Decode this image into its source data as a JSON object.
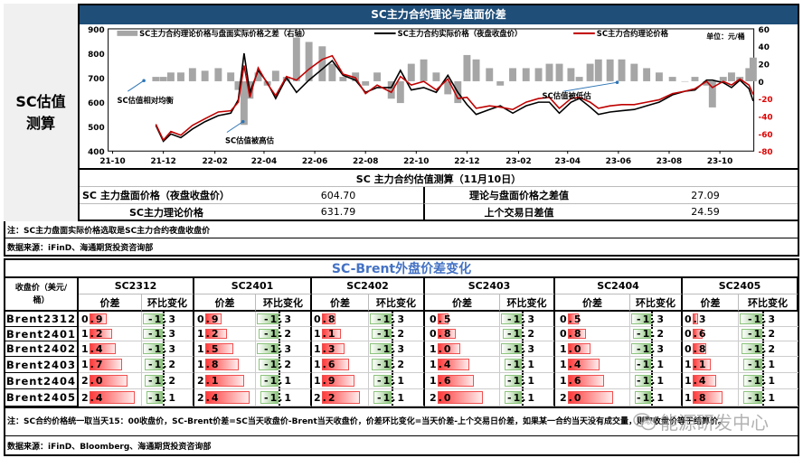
{
  "side_label": "SC估值测算",
  "chart_data": {
    "type": "bar+line",
    "title": "SC主力合约理论与盘面价差",
    "unit": "单位：元/桶",
    "left_axis": {
      "range": [
        400,
        900
      ],
      "ticks": [
        400,
        500,
        600,
        700,
        800,
        900
      ]
    },
    "right_axis": {
      "range": [
        -80,
        60
      ],
      "ticks": [
        -80,
        -60,
        -40,
        -20,
        0,
        20,
        40,
        60
      ]
    },
    "x_ticks": [
      "21-10",
      "21-12",
      "22-02",
      "22-04",
      "22-06",
      "22-08",
      "22-10",
      "22-12",
      "23-02",
      "23-04",
      "23-06",
      "23-08",
      "23-10"
    ],
    "x_tick_dates": [
      "2021-10-01",
      "2021-12-01",
      "2022-02-01",
      "2022-04-01",
      "2022-06-01",
      "2022-08-01",
      "2022-10-01",
      "2022-12-01",
      "2023-02-01",
      "2023-04-01",
      "2023-06-01",
      "2023-08-01",
      "2023-10-01"
    ],
    "legend": [
      "SC主力合约理论价格与盘面实际价格之差（右轴）",
      "SC主力合约实际价格（夜盘收盘价）",
      "SC主力合约理论价格"
    ],
    "colors": {
      "diff": "#a6a6a6",
      "actual": "#000000",
      "theory": "#c00000",
      "title_bg": "#1f4e79"
    },
    "annotations": [
      "SC估值相对均衡",
      "SC估值被高估",
      "SC估值被低估"
    ],
    "dates": [
      "2021-11-22",
      "2021-12-01",
      "2021-12-10",
      "2021-12-22",
      "2022-01-05",
      "2022-01-20",
      "2022-02-05",
      "2022-02-20",
      "2022-03-01",
      "2022-03-08",
      "2022-03-15",
      "2022-03-25",
      "2022-04-05",
      "2022-04-15",
      "2022-04-28",
      "2022-05-10",
      "2022-05-25",
      "2022-06-10",
      "2022-06-22",
      "2022-07-05",
      "2022-07-20",
      "2022-08-01",
      "2022-08-15",
      "2022-09-01",
      "2022-09-12",
      "2022-09-25",
      "2022-10-10",
      "2022-10-25",
      "2022-11-08",
      "2022-11-20",
      "2022-12-01",
      "2022-12-12",
      "2022-12-28",
      "2023-01-10",
      "2023-01-25",
      "2023-02-10",
      "2023-02-25",
      "2023-03-10",
      "2023-03-22",
      "2023-04-05",
      "2023-04-15",
      "2023-04-28",
      "2023-05-08",
      "2023-05-22",
      "2023-06-05",
      "2023-06-20",
      "2023-07-05",
      "2023-07-20",
      "2023-08-05",
      "2023-08-20",
      "2023-09-01",
      "2023-09-15",
      "2023-09-22",
      "2023-10-05",
      "2023-10-15",
      "2023-10-25",
      "2023-11-05",
      "2023-11-10"
    ],
    "actual": [
      505,
      440,
      470,
      455,
      490,
      520,
      545,
      555,
      610,
      800,
      640,
      730,
      680,
      615,
      700,
      640,
      690,
      735,
      770,
      710,
      690,
      640,
      660,
      660,
      730,
      650,
      660,
      640,
      710,
      640,
      590,
      550,
      570,
      585,
      555,
      585,
      600,
      600,
      555,
      600,
      615,
      580,
      550,
      560,
      565,
      570,
      585,
      600,
      630,
      645,
      650,
      690,
      690,
      680,
      660,
      690,
      655,
      604.7
    ],
    "theory": [
      510,
      445,
      480,
      465,
      505,
      532,
      560,
      565,
      600,
      750,
      620,
      740,
      675,
      627,
      705,
      690,
      735,
      775,
      790,
      715,
      700,
      635,
      670,
      640,
      705,
      670,
      685,
      650,
      695,
      615,
      620,
      575,
      585,
      580,
      570,
      600,
      615,
      620,
      575,
      615,
      620,
      600,
      575,
      585,
      590,
      590,
      600,
      610,
      635,
      645,
      655,
      685,
      660,
      685,
      670,
      695,
      670,
      631.79
    ],
    "diff": [
      5,
      5,
      10,
      10,
      15,
      12,
      15,
      10,
      -10,
      -50,
      -20,
      10,
      -5,
      12,
      5,
      50,
      45,
      40,
      20,
      5,
      10,
      -5,
      10,
      -20,
      -25,
      20,
      25,
      10,
      -15,
      -25,
      30,
      25,
      15,
      -5,
      15,
      15,
      15,
      20,
      20,
      15,
      5,
      20,
      25,
      25,
      25,
      20,
      15,
      10,
      5,
      0,
      5,
      -5,
      -30,
      5,
      10,
      5,
      15,
      27.09
    ]
  },
  "valuation": {
    "title": "SC 主力合约估值测算（11月10日）",
    "rows": [
      {
        "label": "SC 主力盘面价格（夜盘收盘价）",
        "value": "604.70",
        "label2": "理论与盘面价格之差值",
        "value2": "27.09"
      },
      {
        "label": "SC主力理论价格",
        "value": "631.79",
        "label2": "上个交易日差值",
        "value2": "24.59"
      }
    ],
    "note": "注：SC主力盘面实际价格选取是SC主力合约夜盘收盘价",
    "source": "数据来源：iFinD、海通期货投资咨询部"
  },
  "spread": {
    "title": "SC-Brent外盘价差变化",
    "corner_label": "收盘价（美元/桶）",
    "sub_headers": [
      "价差",
      "环比变化"
    ],
    "rows": [
      "Brent2312",
      "Brent2401",
      "Brent2402",
      "Brent2403",
      "Brent2404",
      "Brent2405"
    ],
    "columns": [
      {
        "name": "SC2312",
        "spread": [
          "0.9",
          "1.2",
          "1.4",
          "1.7",
          "2.0",
          "2.4"
        ],
        "change": [
          "-1.3",
          "-1.3",
          "-1.3",
          "-1.2",
          "-1.2",
          "-1.1"
        ]
      },
      {
        "name": "SC2401",
        "spread": [
          "0.9",
          "1.2",
          "1.5",
          "1.8",
          "2.1",
          "2.4"
        ],
        "change": [
          "-1.3",
          "-1.2",
          "-1.3",
          "-1.2",
          "-1.1",
          "-1.1"
        ]
      },
      {
        "name": "SC2402",
        "spread": [
          "0.8",
          "1.1",
          "1.3",
          "1.6",
          "1.9",
          "2.2"
        ],
        "change": [
          "-1.3",
          "-1.2",
          "-1.3",
          "-1.2",
          "-1.1",
          "-1.1"
        ]
      },
      {
        "name": "SC2403",
        "spread": [
          "0.5",
          "0.8",
          "1.0",
          "1.4",
          "1.6",
          "2.0"
        ],
        "change": [
          "-1.3",
          "-1.2",
          "-1.3",
          "-1.1",
          "-1.1",
          "-1.1"
        ]
      },
      {
        "name": "SC2404",
        "spread": [
          "0.5",
          "0.8",
          "1.0",
          "1.4",
          "1.6",
          "2.0"
        ],
        "change": [
          "-1.3",
          "-1.2",
          "-1.3",
          "-1.1",
          "-1.1",
          "-1.1"
        ]
      },
      {
        "name": "SC2405",
        "spread": [
          "0.3",
          "0.6",
          "0.8",
          "1.1",
          "1.4",
          "1.8"
        ],
        "change": [
          "-1.3",
          "-1.2",
          "-1.2",
          "-1.1",
          "-1.1",
          "-1.1"
        ]
      }
    ],
    "note": "注：SC合约价格统一取当天15：00收盘价，SC-Brent价差=SC当天收盘价-Brent当天收盘价，价差环比变化=当天价差-上个交易日价差，如果某一合约当天没有成交量，则取收盘价等于结算价。",
    "source": "数据来源：iFinD、Bloomberg、海通期货投资咨询部"
  },
  "watermark": "能源研发中心"
}
